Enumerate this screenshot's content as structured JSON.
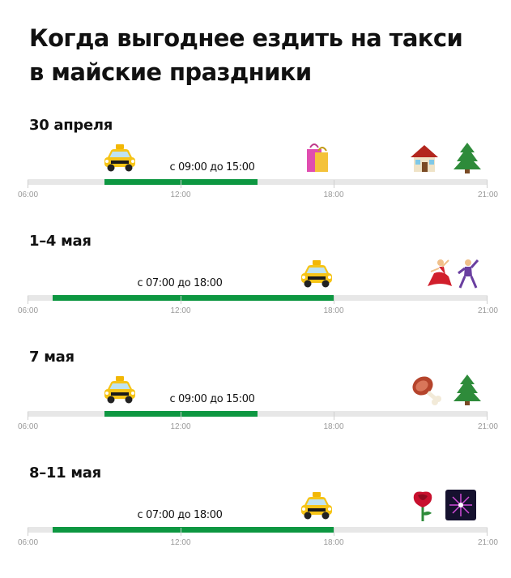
{
  "title": {
    "line1": "Когда выгоднее ездить на такси",
    "line2": "в майские праздники"
  },
  "sections": [
    {
      "heading": "30 апреля",
      "range_label": "с 09:00 до 15:00",
      "ticks": [
        "06:00",
        "12:00",
        "18:00",
        "21:00"
      ],
      "icons": [
        "taxi-icon",
        "shopping-bags-icon",
        "house-icon",
        "christmas-tree-icon"
      ]
    },
    {
      "heading": "1–4 мая",
      "range_label": "с 07:00 до 18:00",
      "ticks": [
        "06:00",
        "12:00",
        "18:00",
        "21:00"
      ],
      "icons": [
        "taxi-icon",
        "dancer-icon",
        "dancing-man-icon"
      ]
    },
    {
      "heading": "7 мая",
      "range_label": "с 09:00 до 15:00",
      "ticks": [
        "06:00",
        "12:00",
        "18:00",
        "21:00"
      ],
      "icons": [
        "taxi-icon",
        "meat-on-bone-icon",
        "christmas-tree-icon"
      ]
    },
    {
      "heading": "8–11 мая",
      "range_label": "с 07:00 до 18:00",
      "ticks": [
        "06:00",
        "12:00",
        "18:00",
        "21:00"
      ],
      "icons": [
        "taxi-icon",
        "rose-icon",
        "fireworks-icon"
      ]
    }
  ],
  "colors": {
    "bar": "#0d9741",
    "track": "#e7e7e7",
    "text": "#111111",
    "tick_label": "#9a9a9a"
  }
}
